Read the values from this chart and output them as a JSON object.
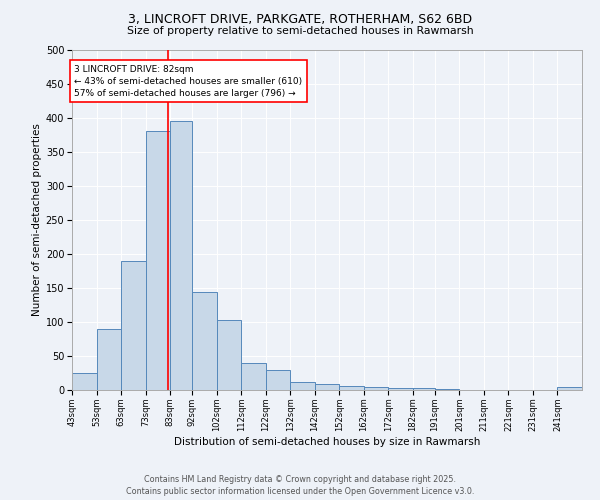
{
  "title1": "3, LINCROFT DRIVE, PARKGATE, ROTHERHAM, S62 6BD",
  "title2": "Size of property relative to semi-detached houses in Rawmarsh",
  "xlabel": "Distribution of semi-detached houses by size in Rawmarsh",
  "ylabel": "Number of semi-detached properties",
  "bin_labels": [
    "43sqm",
    "53sqm",
    "63sqm",
    "73sqm",
    "83sqm",
    "92sqm",
    "102sqm",
    "112sqm",
    "122sqm",
    "132sqm",
    "142sqm",
    "152sqm",
    "162sqm",
    "172sqm",
    "182sqm",
    "191sqm",
    "201sqm",
    "211sqm",
    "221sqm",
    "231sqm",
    "241sqm"
  ],
  "bin_edges": [
    43,
    53,
    63,
    73,
    83,
    92,
    102,
    112,
    122,
    132,
    142,
    152,
    162,
    172,
    182,
    191,
    201,
    211,
    221,
    231,
    241,
    251
  ],
  "counts": [
    25,
    89,
    189,
    381,
    396,
    144,
    103,
    40,
    30,
    12,
    9,
    6,
    5,
    3,
    3,
    1,
    0,
    0,
    0,
    0,
    5
  ],
  "bar_facecolor": "#c8d8e8",
  "bar_edgecolor": "#5588bb",
  "redline_x": 82,
  "redline_color": "red",
  "annotation_text": "3 LINCROFT DRIVE: 82sqm\n← 43% of semi-detached houses are smaller (610)\n57% of semi-detached houses are larger (796) →",
  "annotation_box_color": "white",
  "annotation_box_edgecolor": "red",
  "footer_text": "Contains HM Land Registry data © Crown copyright and database right 2025.\nContains public sector information licensed under the Open Government Licence v3.0.",
  "background_color": "#eef2f8",
  "ylim": [
    0,
    500
  ],
  "yticks": [
    0,
    50,
    100,
    150,
    200,
    250,
    300,
    350,
    400,
    450,
    500
  ]
}
